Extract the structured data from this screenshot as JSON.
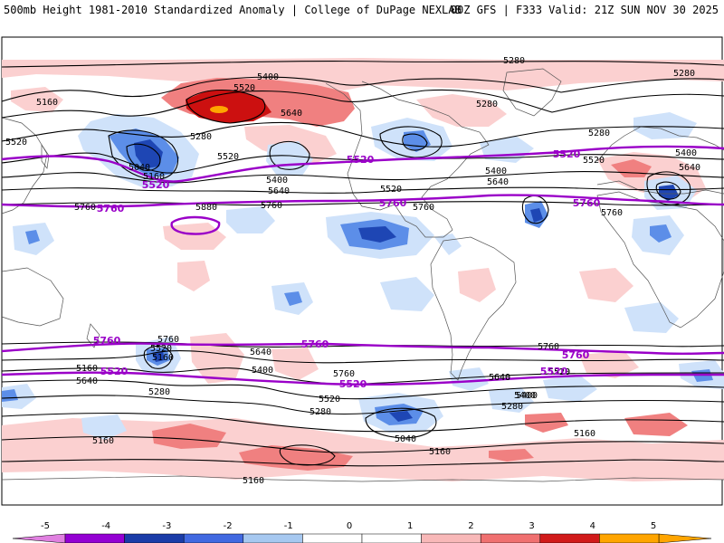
{
  "header": {
    "left": "500mb Height 1981-2010 Standardized Anomaly | College of DuPage NEXLAB",
    "right": "00Z GFS | F333 Valid: 21Z SUN NOV 30 2025"
  },
  "contour_labels": {
    "black": [
      "5280",
      "5400",
      "5520",
      "5160",
      "5640",
      "5520",
      "5280",
      "5520",
      "5040",
      "5160",
      "5400",
      "5640",
      "5760",
      "5880",
      "5760",
      "5280",
      "5400",
      "5520",
      "5640",
      "5760",
      "5280",
      "5280",
      "5520",
      "5400",
      "5640",
      "5760",
      "5760",
      "5520",
      "5640",
      "5160",
      "5160",
      "5400",
      "5640",
      "5280",
      "5760",
      "5640",
      "5400",
      "5520",
      "5280",
      "5040",
      "5160",
      "5520",
      "5400",
      "5280",
      "5640",
      "5760",
      "5520",
      "5160",
      "5160",
      "5160"
    ],
    "purple": [
      "5520",
      "5520",
      "5760",
      "5520",
      "5760",
      "5520",
      "5760",
      "5760",
      "5760",
      "5520",
      "5760",
      "5520",
      "5760",
      "5520"
    ]
  },
  "colorbar": {
    "ticks": [
      "-5",
      "-4",
      "-3",
      "-2",
      "-1",
      "0",
      "1",
      "2",
      "3",
      "4",
      "5"
    ],
    "colors": [
      "#e080e0",
      "#9400d3",
      "#1a3ca8",
      "#4169e1",
      "#a6c8f0",
      "#ffffff",
      "#ffffff",
      "#f8b8b8",
      "#f07070",
      "#d11a1a",
      "#ffa500",
      "#ffa500"
    ]
  },
  "palette": {
    "weak_neg": "#cfe2fa",
    "mid_neg": "#5c8ee8",
    "strong_neg": "#1e46b4",
    "weak_pos": "#fbd0d0",
    "mid_pos": "#f08080",
    "strong_pos": "#cc1010",
    "extreme_pos": "#ffa500",
    "contour": "#000000",
    "key_contour": "#9a00c8"
  }
}
